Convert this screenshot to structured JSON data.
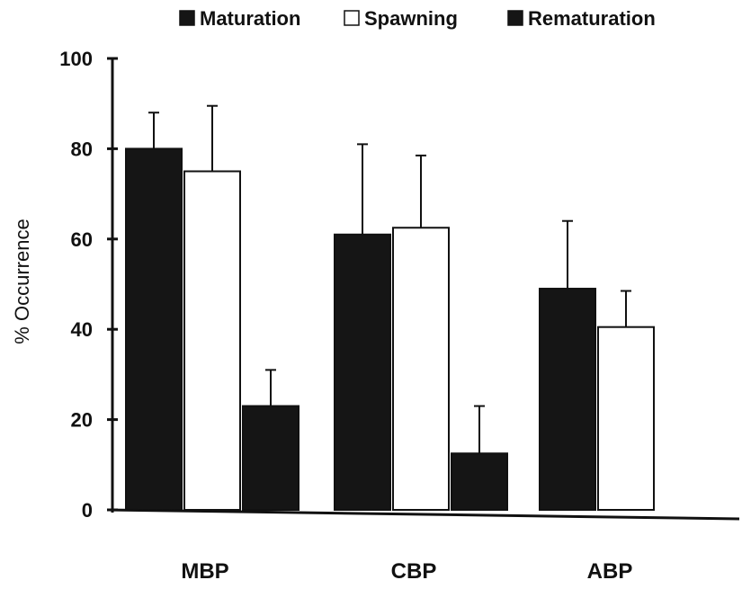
{
  "chart_data": {
    "type": "bar",
    "categories": [
      "MBP",
      "CBP",
      "ABP"
    ],
    "ylabel": "% Occurrence",
    "xlabel": "",
    "ylim": [
      0,
      100
    ],
    "yticks": [
      0,
      20,
      40,
      60,
      80,
      100
    ],
    "legend_position": "top",
    "series": [
      {
        "name": "Maturation",
        "color": "#151515",
        "values": [
          80,
          61,
          49
        ],
        "errors": [
          8,
          20,
          15
        ]
      },
      {
        "name": "Spawning",
        "color": "#ffffff",
        "values": [
          75,
          62.5,
          40.5
        ],
        "errors": [
          14.5,
          16,
          8
        ]
      },
      {
        "name": "Rematuration",
        "color": "#151515",
        "values": [
          23,
          12.5,
          null
        ],
        "errors": [
          8,
          10.5,
          null
        ]
      }
    ]
  }
}
